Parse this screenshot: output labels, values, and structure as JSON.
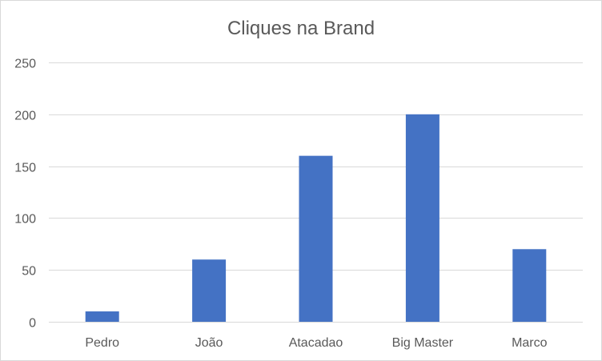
{
  "chart_data": {
    "type": "bar",
    "title": "Cliques na Brand",
    "categories": [
      "Pedro",
      "João",
      "Atacadao",
      "Big Master",
      "Marco"
    ],
    "values": [
      10,
      60,
      160,
      200,
      70
    ],
    "ylim": [
      0,
      250
    ],
    "yticks": [
      0,
      50,
      100,
      150,
      200,
      250
    ],
    "grid": true,
    "legend": "none",
    "colors": {
      "bar": "#4472c4",
      "grid": "#d9d9d9",
      "text": "#595959"
    }
  }
}
